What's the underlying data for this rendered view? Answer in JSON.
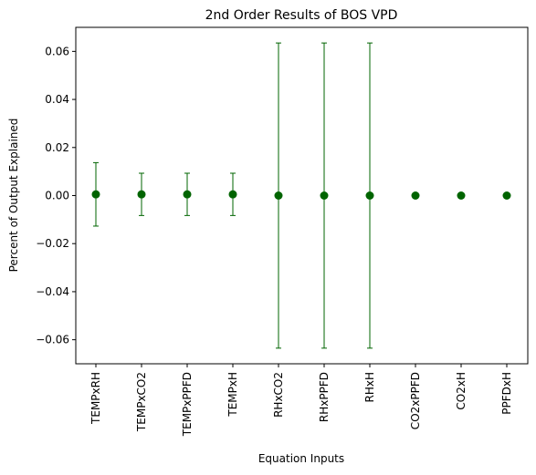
{
  "chart_data": {
    "type": "scatter",
    "title": "2nd Order Results of BOS VPD",
    "xlabel": "Equation Inputs",
    "ylabel": "Percent of Output Explained",
    "categories": [
      "TEMPxRH",
      "TEMPxCO2",
      "TEMPxPPFD",
      "TEMPxH",
      "RHxCO2",
      "RHxPPFD",
      "RHxH",
      "CO2xPPFD",
      "CO2xH",
      "PPFDxH"
    ],
    "values": [
      0.0005,
      0.0005,
      0.0005,
      0.0005,
      0.0,
      0.0,
      0.0,
      0.0,
      0.0,
      0.0
    ],
    "errors": [
      0.0132,
      0.0088,
      0.0088,
      0.0088,
      0.0635,
      0.0635,
      0.0635,
      0.0,
      0.0,
      0.0
    ],
    "ylim": [
      -0.07,
      0.07
    ],
    "yticks": [
      -0.06,
      -0.04,
      -0.02,
      0.0,
      0.02,
      0.04,
      0.06
    ],
    "ytick_labels": [
      "−0.06",
      "−0.04",
      "−0.02",
      "0.00",
      "0.02",
      "0.04",
      "0.06"
    ],
    "grid": false,
    "color": "#006400"
  }
}
